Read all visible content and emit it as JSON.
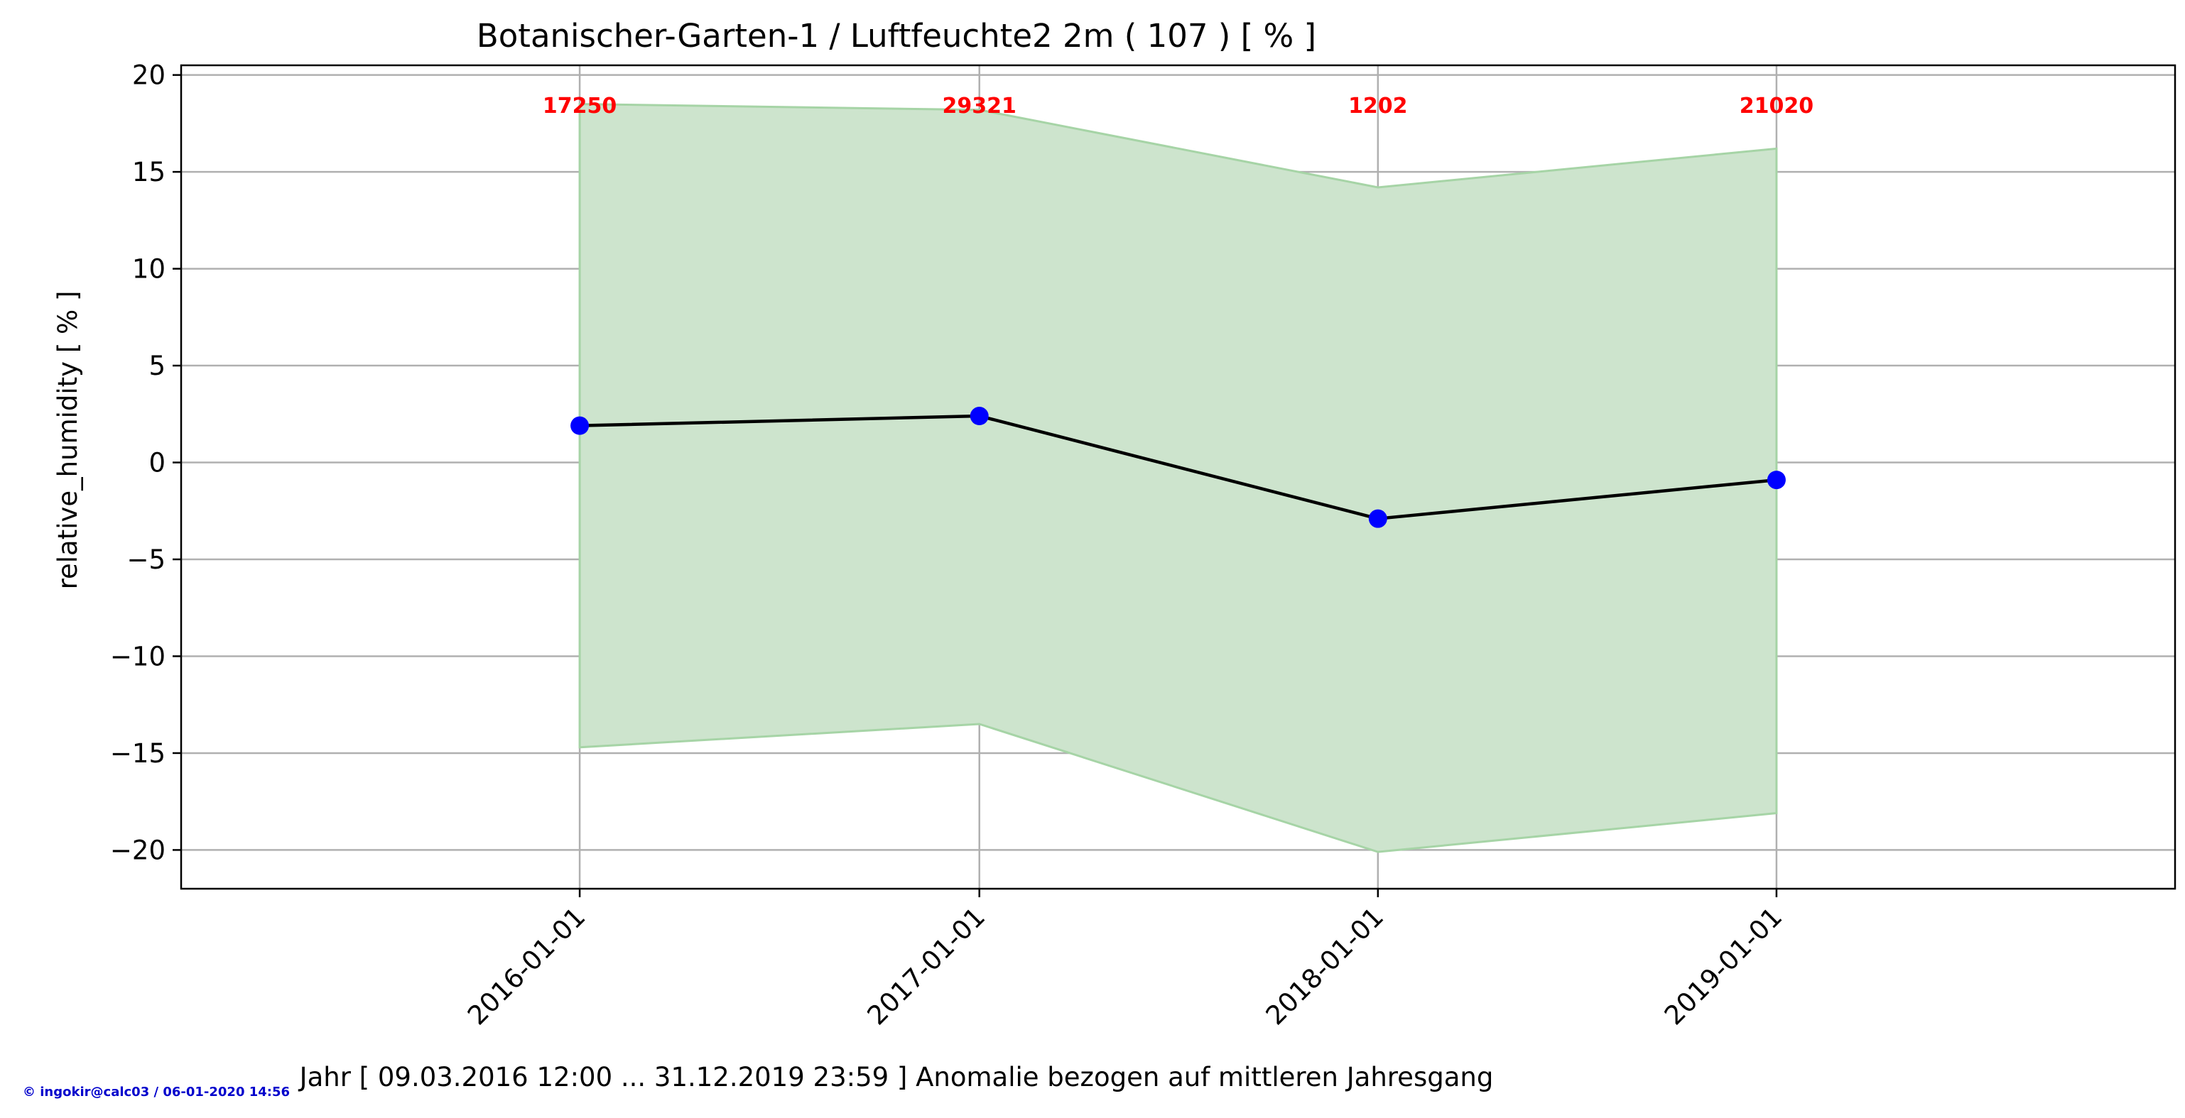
{
  "chart_data": {
    "type": "line",
    "title": "Botanischer-Garten-1 / Luftfeuchte2 2m ( 107 ) [ % ]",
    "xlabel": "Jahr [ 09.03.2016 12:00 ... 31.12.2019 23:59 ] Anomalie bezogen auf mittleren Jahresgang",
    "ylabel": "relative_humidity [ % ]",
    "ylim": [
      -22,
      20.5
    ],
    "xlim": [
      "2015-01-01",
      "2020-01-01"
    ],
    "y_ticks": [
      "20",
      "15",
      "10",
      "5",
      "0",
      "−5",
      "−10",
      "−15",
      "−20"
    ],
    "x": [
      "2016-01-01",
      "2017-01-01",
      "2018-01-01",
      "2019-01-01"
    ],
    "series": [
      {
        "values": [
          1.9,
          2.4,
          -2.9,
          -0.9
        ]
      }
    ],
    "band": {
      "upper": [
        18.5,
        18.2,
        14.2,
        16.2
      ],
      "lower": [
        -14.7,
        -13.5,
        -20.1,
        -18.1
      ]
    },
    "counts": [
      "17250",
      "29321",
      "1202",
      "21020"
    ],
    "grid": true,
    "colors": {
      "line": "#000000",
      "marker": "#0000ff",
      "band_fill": "#cde4cd",
      "band_edge": "#a6d4a6",
      "count_text": "#ff0000",
      "footer_text": "#0000cc",
      "grid": "#b0b0b0"
    }
  },
  "footer": "© ingokir@calc03 / 06-01-2020 14:56"
}
